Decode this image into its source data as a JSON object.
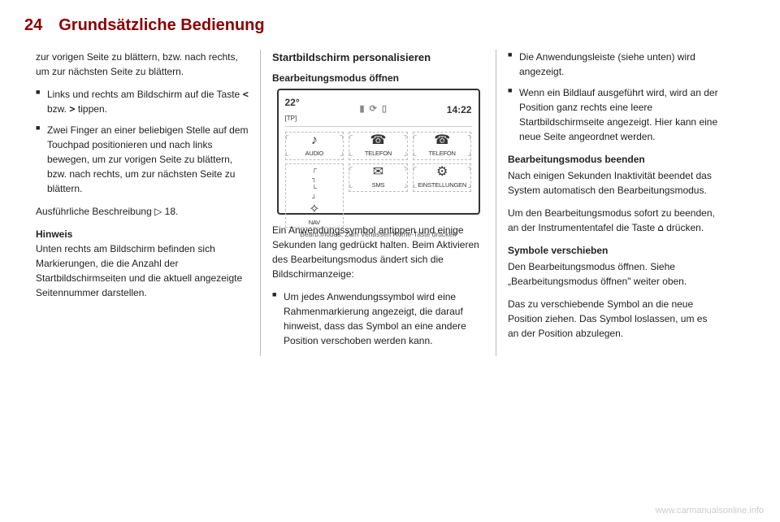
{
  "header": {
    "page_number": "24",
    "title": "Grundsätzliche Bedienung"
  },
  "col1": {
    "p1": "zur vorigen Seite zu blättern, bzw. nach rechts, um zur nächsten Seite zu blättern.",
    "li1_pre": "Links und rechts am Bildschirm auf die Taste ",
    "li1_key1": "<",
    "li1_mid": " bzw. ",
    "li1_key2": ">",
    "li1_post": " tippen.",
    "li2": "Zwei Finger an einer beliebigen Stelle auf dem Touchpad positionieren und nach links bewegen, um zur vorigen Seite zu blättern, bzw. nach rechts, um zur nächsten Seite zu blättern.",
    "p2_pre": "Ausführliche Beschreibung ",
    "p2_symbol": "▷",
    "p2_ref": " 18.",
    "note_label": "Hinweis",
    "note_body": "Unten rechts am Bildschirm befinden sich Markierungen, die die Anzahl der Startbildschirmseiten und die aktuell angezeigte Seitennummer darstellen."
  },
  "col2": {
    "h1": "Startbildschirm personalisieren",
    "h2": "Bearbeitungsmodus öffnen",
    "screen": {
      "temp": "22°",
      "tp": "[TP]",
      "time": "14:22",
      "apps": {
        "audio": {
          "label": "AUDIO",
          "icon": "♪"
        },
        "telefon1": {
          "label": "TELEFON",
          "icon": "☎"
        },
        "telefon2": {
          "label": "TELEFON",
          "icon": "☎"
        },
        "nav": {
          "label": "NAV",
          "icon": "✧"
        },
        "sms": {
          "label": "SMS",
          "icon": "✉"
        },
        "einst": {
          "label": "EINSTELLUNGEN",
          "icon": "⚙"
        }
      },
      "footer": "Bearb.modus: Zum Verlassen Home-Taste drücken"
    },
    "p1": "Ein Anwendungssymbol antippen und einige Sekunden lang gedrückt halten. Beim Aktivieren des Bearbeitungsmodus ändert sich die Bildschirmanzeige:",
    "li1": "Um jedes Anwendungssymbol wird eine Rahmenmarkierung angezeigt, die darauf hinweist, dass das Symbol an eine andere Position verschoben werden kann."
  },
  "col3": {
    "li1": "Die Anwendungsleiste (siehe unten) wird angezeigt.",
    "li2": "Wenn ein Bildlauf ausgeführt wird, wird an der Position ganz rechts eine leere Startbildschirmseite angezeigt. Hier kann eine neue Seite angeordnet werden.",
    "h_exit": "Bearbeitungsmodus beenden",
    "p_exit1": "Nach einigen Sekunden Inaktivität beendet das System automatisch den Bearbeitungsmodus.",
    "p_exit2_pre": "Um den Bearbeitungsmodus sofort zu beenden, an der Instrumententafel die Taste ",
    "p_exit2_key": "⌂",
    "p_exit2_post": " drücken.",
    "h_move": "Symbole verschieben",
    "p_move1": "Den Bearbeitungsmodus öffnen. Siehe „Bearbeitungsmodus öffnen\" weiter oben.",
    "p_move2": "Das zu verschiebende Symbol an die neue Position ziehen. Das Symbol loslassen, um es an der Position abzulegen."
  },
  "watermark": "www.carmanualsonline.info"
}
